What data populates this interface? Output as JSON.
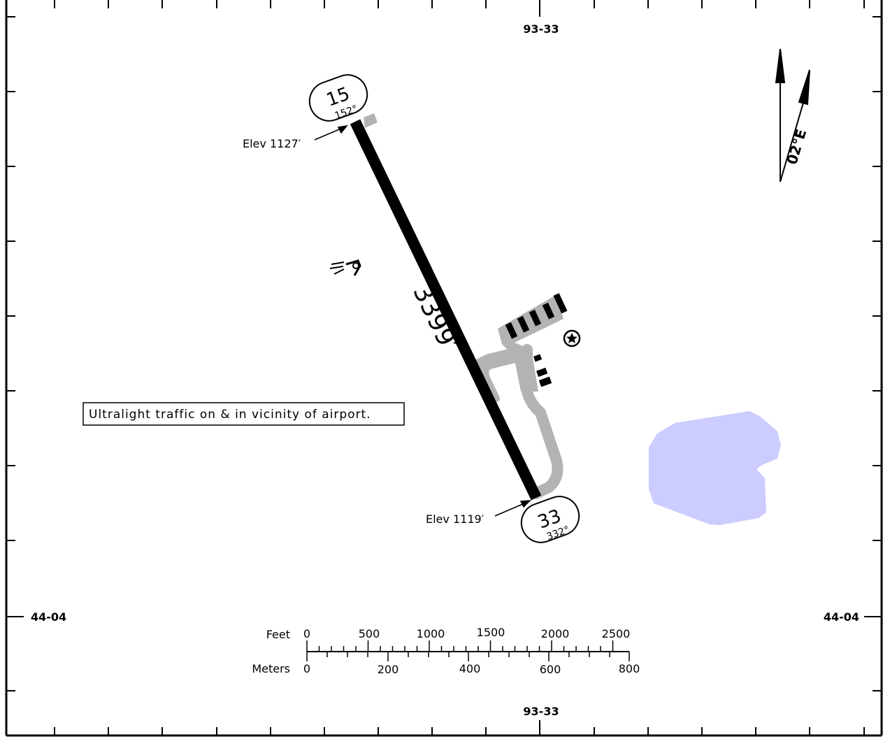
{
  "chart": {
    "latitude_label_top": "93-33",
    "latitude_label_bottom": "93-33",
    "longitude_label_left": "44-04",
    "longitude_label_right": "44-04"
  },
  "runway": {
    "length_label": "3399′",
    "end_north": {
      "number": "15",
      "heading": "152°",
      "elevation": "Elev 1127′"
    },
    "end_south": {
      "number": "33",
      "heading": "332°",
      "elevation": "Elev 1119′"
    }
  },
  "note": "Ultralight traffic on & in vicinity of airport.",
  "magnetic_variation": "02°E",
  "scale_bar": {
    "feet_label": "Feet",
    "meters_label": "Meters",
    "feet_ticks": [
      "0",
      "500",
      "1000",
      "1500",
      "2000",
      "2500"
    ],
    "meters_ticks": [
      "0",
      "200",
      "400",
      "600",
      "800"
    ]
  },
  "colors": {
    "runway": "#000000",
    "taxiway": "#b3b3b3",
    "water": "#ccccff",
    "frame": "#000000"
  },
  "icons": {
    "beacon": "rotating-beacon-star-icon",
    "windcone": "wind-cone-icon"
  }
}
